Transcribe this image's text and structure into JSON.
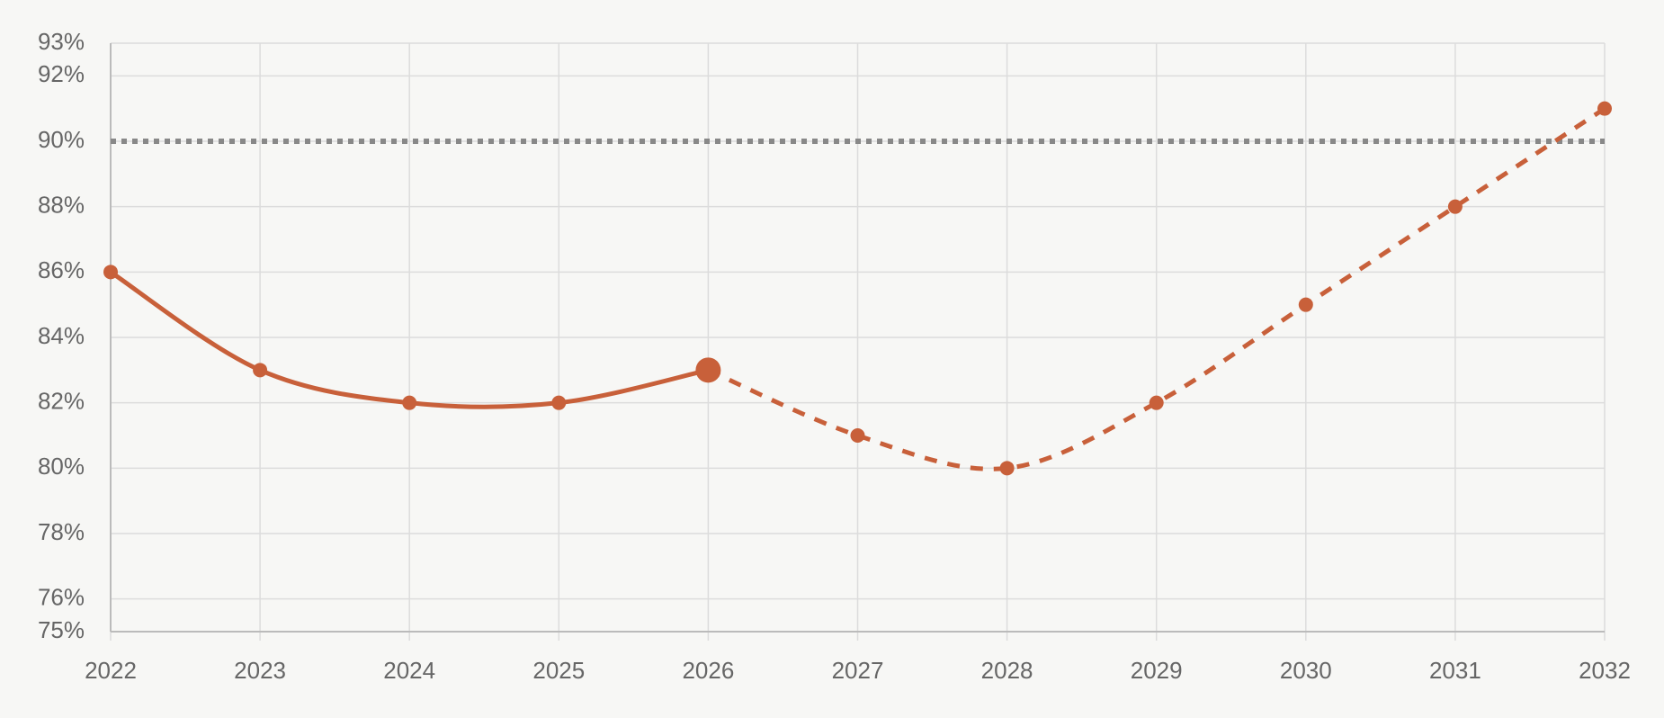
{
  "chart_data": {
    "type": "line",
    "x": [
      2022,
      2023,
      2024,
      2025,
      2026,
      2027,
      2028,
      2029,
      2030,
      2031,
      2032
    ],
    "series": [
      {
        "color": "#c8603a",
        "dash": false,
        "highlight": 4,
        "values": [
          86,
          83,
          82,
          82,
          83,
          null,
          null,
          null,
          null,
          null,
          null
        ]
      },
      {
        "color": "#c8603a",
        "dash": true,
        "values": [
          null,
          null,
          null,
          null,
          83,
          81,
          80,
          82,
          85,
          88,
          91
        ]
      }
    ],
    "reference_lines": [
      {
        "value": 90,
        "color": "#888888"
      }
    ],
    "xlim": [
      2022,
      2032
    ],
    "xticks": [
      2022,
      2023,
      2024,
      2025,
      2026,
      2027,
      2028,
      2029,
      2030,
      2031,
      2032
    ],
    "ylim": [
      75,
      93
    ],
    "yticks": [
      {
        "value": 75,
        "label": "75%"
      },
      {
        "value": 76,
        "label": "76%"
      },
      {
        "value": 78,
        "label": "78%"
      },
      {
        "value": 80,
        "label": "80%"
      },
      {
        "value": 82,
        "label": "82%"
      },
      {
        "value": 84,
        "label": "84%"
      },
      {
        "value": 86,
        "label": "86%"
      },
      {
        "value": 88,
        "label": "88%"
      },
      {
        "value": 90,
        "label": "90%"
      },
      {
        "value": 92,
        "label": "92%"
      },
      {
        "value": 93,
        "label": "93%"
      }
    ],
    "grid": true
  }
}
